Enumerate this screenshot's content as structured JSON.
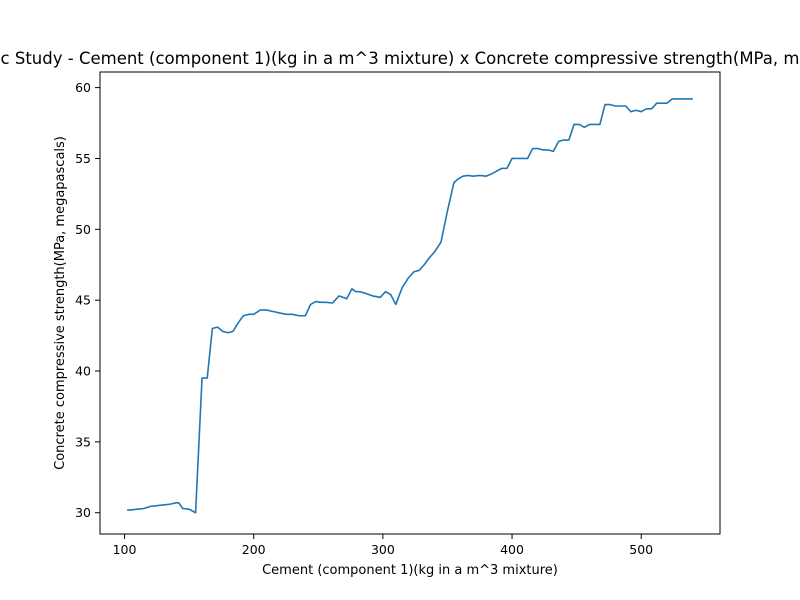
{
  "chart_data": {
    "type": "line",
    "title": "c Study - Cement (component 1)(kg in a m^3 mixture) x Concrete compressive strength(MPa, m",
    "xlabel": "Cement (component 1)(kg in a m^3 mixture)",
    "ylabel": "Concrete compressive strength(MPa, megapascals)",
    "xlim": [
      81,
      561
    ],
    "ylim": [
      28.5,
      61.1
    ],
    "xticks": [
      100,
      200,
      300,
      400,
      500
    ],
    "yticks": [
      30,
      35,
      40,
      45,
      50,
      55,
      60
    ],
    "grid": false,
    "color": "#1f77b4",
    "series": [
      {
        "x": [
          102,
          105,
          110,
          115,
          120,
          125,
          130,
          135,
          140,
          142,
          145,
          150,
          155,
          160,
          164,
          168,
          172,
          176,
          180,
          184,
          188,
          192,
          196,
          200,
          205,
          210,
          215,
          220,
          225,
          230,
          235,
          240,
          244,
          248,
          252,
          256,
          261,
          266,
          272,
          276,
          279,
          282,
          286,
          292,
          298,
          302,
          306,
          310,
          315,
          320,
          324,
          328,
          332,
          336,
          340,
          345,
          350,
          355,
          359,
          362,
          366,
          370,
          375,
          380,
          384,
          388,
          392,
          396,
          400,
          404,
          408,
          412,
          416,
          420,
          424,
          428,
          432,
          436,
          440,
          444,
          448,
          452,
          456,
          460,
          464,
          468,
          472,
          476,
          480,
          484,
          488,
          492,
          496,
          500,
          504,
          508,
          512,
          516,
          520,
          524,
          528,
          532,
          536,
          540
        ],
        "y": [
          30.2,
          30.2,
          30.25,
          30.3,
          30.45,
          30.5,
          30.55,
          30.6,
          30.7,
          30.7,
          30.3,
          30.25,
          30.0,
          39.5,
          39.5,
          43.0,
          43.1,
          42.8,
          42.7,
          42.8,
          43.4,
          43.9,
          44.0,
          44.0,
          44.3,
          44.3,
          44.2,
          44.1,
          44.0,
          44.0,
          43.9,
          43.9,
          44.7,
          44.9,
          44.85,
          44.85,
          44.8,
          45.3,
          45.1,
          45.8,
          45.6,
          45.6,
          45.5,
          45.3,
          45.2,
          45.6,
          45.4,
          44.7,
          45.9,
          46.6,
          47.0,
          47.1,
          47.5,
          48.0,
          48.4,
          49.1,
          51.3,
          53.3,
          53.6,
          53.75,
          53.8,
          53.75,
          53.8,
          53.75,
          53.9,
          54.1,
          54.3,
          54.3,
          55.0,
          55.0,
          55.0,
          55.0,
          55.7,
          55.7,
          55.6,
          55.6,
          55.5,
          56.2,
          56.3,
          56.3,
          57.4,
          57.4,
          57.2,
          57.4,
          57.4,
          57.4,
          58.8,
          58.8,
          58.7,
          58.7,
          58.7,
          58.3,
          58.4,
          58.3,
          58.5,
          58.5,
          58.9,
          58.9,
          58.9,
          59.2,
          59.2,
          59.2,
          59.2,
          59.2
        ]
      }
    ]
  }
}
